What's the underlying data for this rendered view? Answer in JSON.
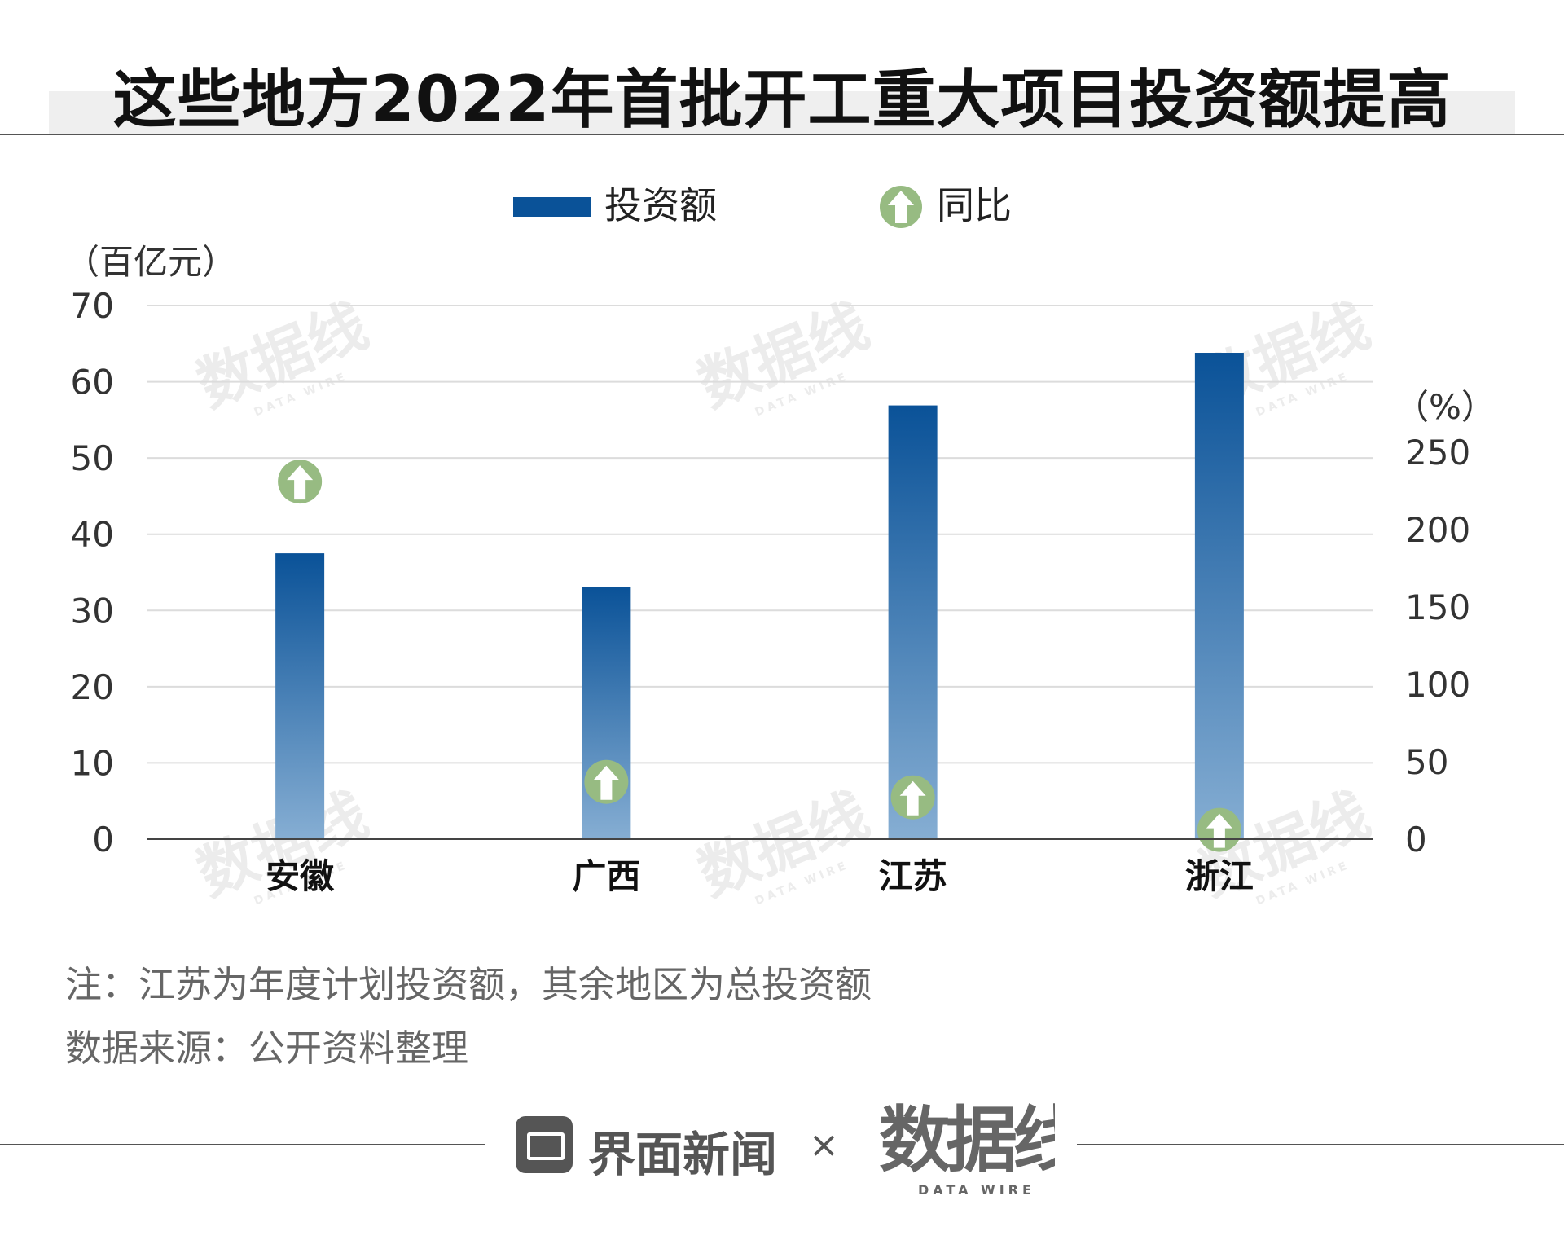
{
  "title": "这些地方2022年首批开工重大项目投资额提高",
  "legend": {
    "bar_label": "投资额",
    "marker_label": "同比"
  },
  "colors": {
    "bar_top": "#0a5298",
    "bar_bottom": "#86aed3",
    "legend_bar": "#0a5298",
    "marker": "#97bb82",
    "grid": "#dcdcdc",
    "axis": "#444444"
  },
  "icons": {
    "marker": "up-arrow-circle-icon",
    "brand": "jiemian-logo-icon"
  },
  "chart_data": {
    "type": "bar",
    "categories": [
      "安徽",
      "广西",
      "江苏",
      "浙江"
    ],
    "series": [
      {
        "name": "投资额",
        "axis": "left",
        "values": [
          37.5,
          33.1,
          56.9,
          63.8
        ]
      },
      {
        "name": "同比",
        "axis": "right",
        "type": "scatter",
        "marker": "up-arrow-circle",
        "values": [
          231,
          37,
          27,
          6
        ]
      }
    ],
    "left_axis": {
      "unit_label": "（百亿元）",
      "ticks": [
        0,
        10,
        20,
        30,
        40,
        50,
        60,
        70
      ],
      "range": [
        0,
        70
      ]
    },
    "right_axis": {
      "unit_label": "（%）",
      "ticks": [
        0,
        50,
        100,
        150,
        200,
        250
      ],
      "range": [
        0,
        250
      ]
    },
    "grid": true,
    "legend_position": "top"
  },
  "notes": {
    "note": "注：江苏为年度计划投资额，其余地区为总投资额",
    "source": "数据来源：公开资料整理"
  },
  "footer": {
    "brand": "界面新闻",
    "times": "×",
    "logo_text": "数据线",
    "logo_sub": "DATA WIRE"
  },
  "watermark": {
    "text": "数据线",
    "sub": "DATA WIRE"
  }
}
